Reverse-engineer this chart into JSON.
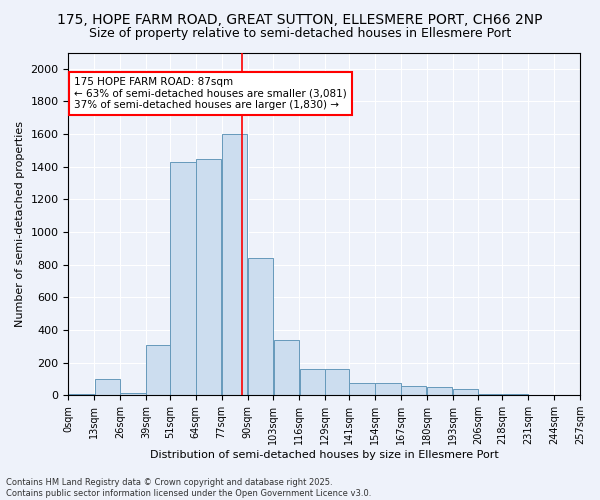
{
  "title1": "175, HOPE FARM ROAD, GREAT SUTTON, ELLESMERE PORT, CH66 2NP",
  "title2": "Size of property relative to semi-detached houses in Ellesmere Port",
  "xlabel": "Distribution of semi-detached houses by size in Ellesmere Port",
  "ylabel": "Number of semi-detached properties",
  "footer1": "Contains HM Land Registry data © Crown copyright and database right 2025.",
  "footer2": "Contains public sector information licensed under the Open Government Licence v3.0.",
  "annotation_title": "175 HOPE FARM ROAD: 87sqm",
  "annotation_line1": "← 63% of semi-detached houses are smaller (3,081)",
  "annotation_line2": "37% of semi-detached houses are larger (1,830) →",
  "bin_labels": [
    "0sqm",
    "13sqm",
    "26sqm",
    "39sqm",
    "51sqm",
    "64sqm",
    "77sqm",
    "90sqm",
    "103sqm",
    "116sqm",
    "129sqm",
    "141sqm",
    "154sqm",
    "167sqm",
    "180sqm",
    "193sqm",
    "206sqm",
    "218sqm",
    "231sqm",
    "244sqm",
    "257sqm"
  ],
  "bin_edges": [
    0,
    13,
    26,
    39,
    51,
    64,
    77,
    90,
    103,
    116,
    129,
    141,
    154,
    167,
    180,
    193,
    206,
    218,
    231,
    244,
    257
  ],
  "bar_heights": [
    5,
    100,
    15,
    310,
    1430,
    1450,
    1600,
    840,
    340,
    160,
    160,
    75,
    75,
    55,
    50,
    40,
    10,
    5,
    2,
    1,
    0
  ],
  "bar_color": "#ccddef",
  "bar_edge_color": "#6699bb",
  "vline_color": "red",
  "vline_x": 87,
  "ylim": [
    0,
    2100
  ],
  "yticks": [
    0,
    200,
    400,
    600,
    800,
    1000,
    1200,
    1400,
    1600,
    1800,
    2000
  ],
  "bg_color": "#eef2fa",
  "grid_color": "#ffffff",
  "title1_fontsize": 10,
  "title2_fontsize": 9,
  "annotation_box_color": "white",
  "annotation_box_edgecolor": "red",
  "annotation_fontsize": 7.5
}
